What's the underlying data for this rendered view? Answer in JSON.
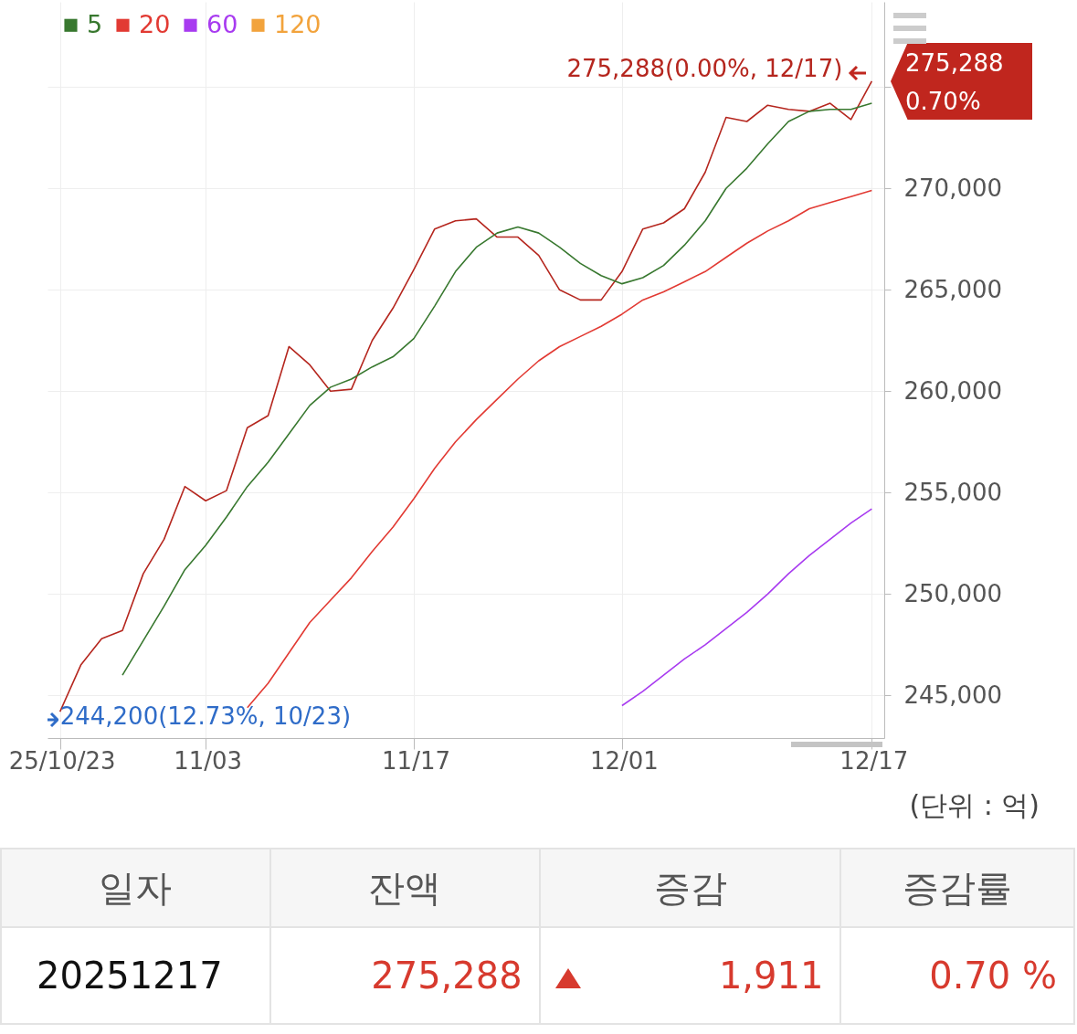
{
  "chart_data": {
    "type": "line",
    "categories": [
      "25/10/23",
      null,
      null,
      null,
      null,
      null,
      null,
      "11/03",
      null,
      null,
      null,
      null,
      null,
      null,
      null,
      null,
      null,
      "11/17",
      null,
      null,
      null,
      null,
      null,
      null,
      null,
      null,
      null,
      "12/01",
      null,
      null,
      null,
      null,
      null,
      null,
      null,
      null,
      null,
      null,
      null,
      "12/17"
    ],
    "series": [
      {
        "color": "#b5261e",
        "values": [
          244200,
          246500,
          247800,
          248200,
          251000,
          252700,
          255300,
          254600,
          255100,
          258200,
          258800,
          262200,
          261300,
          260000,
          260100,
          262500,
          264100,
          266000,
          268000,
          268400,
          268500,
          267600,
          267600,
          266700,
          265000,
          264500,
          264500,
          265900,
          268000,
          268300,
          269000,
          270800,
          273500,
          273300,
          274100,
          273900,
          273800,
          274200,
          273400,
          275288
        ]
      },
      {
        "name": "5",
        "color": "#38782f",
        "values": [
          null,
          null,
          null,
          246000,
          247700,
          249400,
          251200,
          252400,
          253800,
          255300,
          256500,
          257900,
          259300,
          260200,
          260600,
          261200,
          261700,
          262600,
          264200,
          265900,
          267100,
          267800,
          268100,
          267800,
          267100,
          266300,
          265700,
          265300,
          265600,
          266200,
          267200,
          268400,
          270000,
          271000,
          272200,
          273300,
          273800,
          273900,
          273900,
          274200
        ]
      },
      {
        "name": "20",
        "color": "#e23a33",
        "values": [
          null,
          null,
          null,
          null,
          null,
          null,
          null,
          null,
          null,
          244400,
          245600,
          247100,
          248600,
          249700,
          250800,
          252100,
          253300,
          254700,
          256200,
          257500,
          258600,
          259600,
          260600,
          261500,
          262200,
          262700,
          263200,
          263800,
          264500,
          264900,
          265400,
          265900,
          266600,
          267300,
          267900,
          268400,
          269000,
          269300,
          269600,
          269900
        ]
      },
      {
        "name": "60",
        "color": "#a83bf0",
        "values": [
          null,
          null,
          null,
          null,
          null,
          null,
          null,
          null,
          null,
          null,
          null,
          null,
          null,
          null,
          null,
          null,
          null,
          null,
          null,
          null,
          null,
          null,
          null,
          null,
          null,
          null,
          null,
          244500,
          245200,
          246000,
          246800,
          247500,
          248300,
          249100,
          250000,
          251000,
          251900,
          252700,
          253500,
          254200
        ]
      },
      {
        "name": "120",
        "color": "#f2a33c",
        "values": [
          null,
          null,
          null,
          null,
          null,
          null,
          null,
          null,
          null,
          null,
          null,
          null,
          null,
          null,
          null,
          null,
          null,
          null,
          null,
          null,
          null,
          null,
          null,
          null,
          null,
          null,
          null,
          null,
          null,
          null,
          null,
          null,
          null,
          null,
          null,
          null,
          null,
          null,
          null,
          null
        ]
      }
    ],
    "ylim": [
      242900,
      279200
    ],
    "yticks": [
      {
        "value": 245000,
        "label": "245,000"
      },
      {
        "value": 250000,
        "label": "250,000"
      },
      {
        "value": 255000,
        "label": "255,000"
      },
      {
        "value": 260000,
        "label": "260,000"
      },
      {
        "value": 265000,
        "label": "265,000"
      },
      {
        "value": 270000,
        "label": "270,000"
      },
      {
        "value": 275000,
        "label": null
      }
    ],
    "grid": true,
    "legend": "top left",
    "annotations": [
      {
        "text": "275,288(0.00%, 12/17)",
        "x": "12/17",
        "y": 275288
      },
      {
        "text": "244,200(12.73%, 10/23)",
        "x": "25/10/23",
        "y": 244200
      },
      "275,288",
      "0.70%",
      "(단위 : 억)",
      "일자",
      "잔액",
      "증감",
      "증감률",
      "20251217",
      "275,288",
      "1,911",
      "0.70 %"
    ]
  }
}
